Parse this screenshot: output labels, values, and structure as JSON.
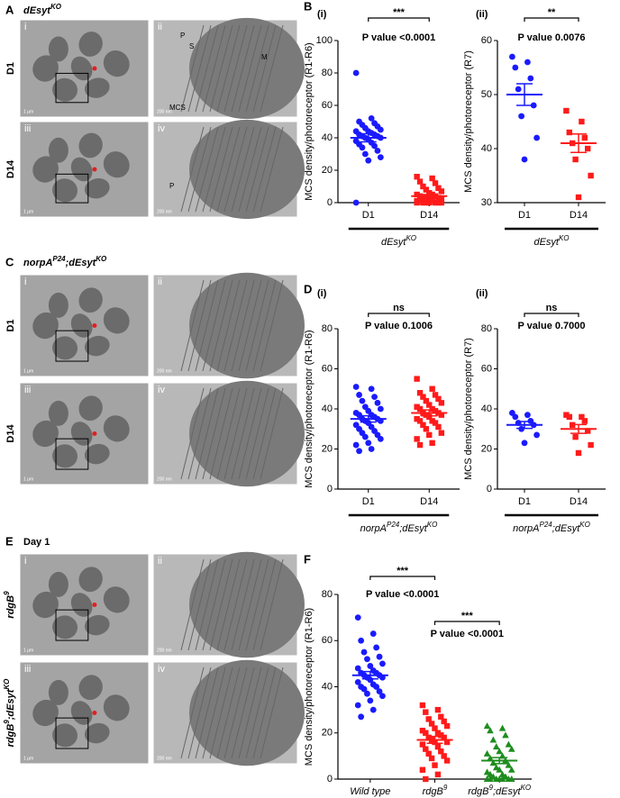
{
  "figure": {
    "panels": [
      {
        "label": "A",
        "title": [
          {
            "text": "dEsyt"
          },
          {
            "text": "KO",
            "sup": true
          }
        ],
        "rows": [
          {
            "label": [
              {
                "text": "D1"
              }
            ],
            "images": [
              {
                "label": "i",
                "scale": "1 μm"
              },
              {
                "label": "ii",
                "scale": "200 nm",
                "notes": [
                  "P",
                  "S",
                  "M",
                  "MCS"
                ]
              }
            ]
          },
          {
            "label": [
              {
                "text": "D14"
              }
            ],
            "images": [
              {
                "label": "iii",
                "scale": "1 μm"
              },
              {
                "label": "iv",
                "scale": "200 nm",
                "notes": [
                  "P"
                ]
              }
            ]
          }
        ]
      },
      {
        "label": "C",
        "title": [
          {
            "text": "norpA"
          },
          {
            "text": "P24",
            "sup": true
          },
          {
            "text": ";dEsyt"
          },
          {
            "text": "KO",
            "sup": true
          }
        ],
        "rows": [
          {
            "label": [
              {
                "text": "D1"
              }
            ],
            "images": [
              {
                "label": "i",
                "scale": "1 μm"
              },
              {
                "label": "ii",
                "scale": "200 nm"
              }
            ]
          },
          {
            "label": [
              {
                "text": "D14"
              }
            ],
            "images": [
              {
                "label": "iii",
                "scale": "1 μm"
              },
              {
                "label": "iv",
                "scale": "200 nm"
              }
            ]
          }
        ]
      },
      {
        "label": "E",
        "title": [
          {
            "text": "Day 1"
          }
        ],
        "rows": [
          {
            "label": [
              {
                "text": "rdgB"
              },
              {
                "text": "9",
                "sup": true
              }
            ],
            "images": [
              {
                "label": "i",
                "scale": "1 μm"
              },
              {
                "label": "ii",
                "scale": "200 nm"
              }
            ]
          },
          {
            "label": [
              {
                "text": "rdgB"
              },
              {
                "text": "9",
                "sup": true
              },
              {
                "text": ";dEsyt"
              },
              {
                "text": "KO",
                "sup": true
              }
            ],
            "images": [
              {
                "label": "iii",
                "scale": "1 μm"
              },
              {
                "label": "iv",
                "scale": "200 nm"
              }
            ]
          }
        ]
      }
    ]
  },
  "chart_data": [
    {
      "type": "scatter",
      "label": "B",
      "title": "(i)",
      "ylabel": "MCS density/photoreceptor (R1-R6)",
      "xlabel": [
        {
          "text": "dEsyt"
        },
        {
          "text": "KO",
          "sup": true
        }
      ],
      "ylim": [
        0,
        100
      ],
      "yticks": [
        0,
        20,
        40,
        60,
        80,
        100
      ],
      "categories": [
        [
          {
            "text": "D1"
          }
        ],
        [
          {
            "text": "D14"
          }
        ]
      ],
      "groups": [
        {
          "color": "#1a1aff",
          "marker": "circle",
          "mean": 40,
          "sem": 2.5,
          "values": [
            80,
            52,
            50,
            49,
            48,
            47,
            46,
            45,
            44,
            44,
            43,
            42,
            42,
            41,
            41,
            40,
            40,
            39,
            38,
            37,
            36,
            35,
            34,
            32,
            30,
            28,
            26,
            0
          ]
        },
        {
          "color": "#ff1a1a",
          "marker": "square",
          "mean": 4,
          "sem": 1,
          "values": [
            16,
            15,
            13,
            12,
            10,
            9,
            8,
            7,
            6,
            5,
            5,
            4,
            4,
            3,
            3,
            2,
            2,
            2,
            1,
            1,
            1,
            0,
            0,
            0,
            0,
            0,
            0,
            0
          ]
        }
      ],
      "comparisons": [
        {
          "stars": "***",
          "p": "P value <0.0001"
        }
      ]
    },
    {
      "type": "scatter",
      "title": "(ii)",
      "ylabel": "MCS density/photoreceptor (R7)",
      "xlabel": [
        {
          "text": "dEsyt"
        },
        {
          "text": "KO",
          "sup": true
        }
      ],
      "ylim": [
        30,
        60
      ],
      "yticks": [
        30,
        40,
        50,
        60
      ],
      "categories": [
        [
          {
            "text": "D1"
          }
        ],
        [
          {
            "text": "D14"
          }
        ]
      ],
      "groups": [
        {
          "color": "#1a1aff",
          "marker": "circle",
          "mean": 50,
          "sem": 2,
          "values": [
            57,
            56,
            55,
            53,
            51,
            48,
            46,
            42,
            38
          ]
        },
        {
          "color": "#ff1a1a",
          "marker": "square",
          "mean": 41,
          "sem": 1.7,
          "values": [
            47,
            45,
            43,
            42,
            41,
            40,
            38,
            35,
            31
          ]
        }
      ],
      "comparisons": [
        {
          "stars": "**",
          "p": "P value 0.0076"
        }
      ]
    },
    {
      "type": "scatter",
      "label": "D",
      "title": "(i)",
      "ylabel": "MCS density/photoreceptor (R1-R6)",
      "xlabel": [
        {
          "text": "norpA"
        },
        {
          "text": "P24",
          "sup": true
        },
        {
          "text": ";dEsyt"
        },
        {
          "text": "KO",
          "sup": true
        }
      ],
      "ylim": [
        0,
        80
      ],
      "yticks": [
        0,
        20,
        40,
        60,
        80
      ],
      "categories": [
        [
          {
            "text": "D1"
          }
        ],
        [
          {
            "text": "D14"
          }
        ]
      ],
      "groups": [
        {
          "color": "#1a1aff",
          "marker": "circle",
          "mean": 35,
          "sem": 1.6,
          "values": [
            51,
            50,
            47,
            46,
            44,
            43,
            41,
            40,
            39,
            38,
            37,
            37,
            36,
            35,
            35,
            34,
            34,
            33,
            32,
            31,
            30,
            29,
            28,
            27,
            26,
            25,
            23,
            22,
            20,
            19
          ]
        },
        {
          "color": "#ff1a1a",
          "marker": "square",
          "mean": 38,
          "sem": 1.5,
          "values": [
            55,
            50,
            48,
            47,
            46,
            45,
            44,
            43,
            42,
            41,
            40,
            40,
            39,
            38,
            38,
            37,
            37,
            36,
            35,
            34,
            34,
            33,
            32,
            31,
            30,
            28,
            27,
            25,
            23,
            22
          ]
        }
      ],
      "comparisons": [
        {
          "stars": "ns",
          "p": "P value 0.1006"
        }
      ]
    },
    {
      "type": "scatter",
      "title": "(ii)",
      "ylabel": "MCS density/photoreceptor (R7)",
      "xlabel": [
        {
          "text": "norpA"
        },
        {
          "text": "P24",
          "sup": true
        },
        {
          "text": ";dEsyt"
        },
        {
          "text": "KO",
          "sup": true
        }
      ],
      "ylim": [
        0,
        80
      ],
      "yticks": [
        0,
        20,
        40,
        60,
        80
      ],
      "categories": [
        [
          {
            "text": "D1"
          }
        ],
        [
          {
            "text": "D14"
          }
        ]
      ],
      "groups": [
        {
          "color": "#1a1aff",
          "marker": "circle",
          "mean": 32,
          "sem": 1.7,
          "values": [
            38,
            37,
            36,
            34,
            33,
            32,
            30,
            27,
            23
          ]
        },
        {
          "color": "#ff1a1a",
          "marker": "square",
          "mean": 30,
          "sem": 2.2,
          "values": [
            37,
            36,
            36,
            34,
            32,
            29,
            26,
            22,
            18
          ]
        }
      ],
      "comparisons": [
        {
          "stars": "ns",
          "p": "P value 0.7000"
        }
      ]
    },
    {
      "type": "scatter",
      "label": "F",
      "ylabel": "MCS density/photoreceptor (R1-R6)",
      "ylim": [
        0,
        80
      ],
      "yticks": [
        0,
        20,
        40,
        60,
        80
      ],
      "categories": [
        [
          {
            "text": "Wild type"
          }
        ],
        [
          {
            "text": "rdgB"
          },
          {
            "text": "9",
            "sup": true
          }
        ],
        [
          {
            "text": "rdgB"
          },
          {
            "text": "9",
            "sup": true
          },
          {
            "text": ";dEsyt"
          },
          {
            "text": "KO",
            "sup": true
          }
        ]
      ],
      "groups": [
        {
          "color": "#1a1aff",
          "marker": "circle",
          "mean": 45,
          "sem": 1.6,
          "values": [
            70,
            63,
            60,
            57,
            55,
            53,
            52,
            50,
            49,
            48,
            47,
            46,
            46,
            45,
            45,
            44,
            44,
            43,
            42,
            41,
            40,
            40,
            39,
            38,
            37,
            36,
            34,
            32,
            30,
            27
          ]
        },
        {
          "color": "#ff1a1a",
          "marker": "square",
          "mean": 17,
          "sem": 1.5,
          "values": [
            32,
            30,
            29,
            27,
            26,
            25,
            24,
            23,
            22,
            21,
            20,
            20,
            19,
            18,
            18,
            17,
            16,
            16,
            15,
            14,
            13,
            12,
            11,
            10,
            9,
            8,
            6,
            4,
            2,
            0
          ]
        },
        {
          "color": "#1e8c1e",
          "marker": "triangle",
          "mean": 8,
          "sem": 1.3,
          "values": [
            23,
            22,
            21,
            19,
            17,
            15,
            14,
            13,
            12,
            11,
            10,
            9,
            8,
            7,
            6,
            5,
            4,
            4,
            3,
            2,
            2,
            1,
            1,
            0,
            0,
            0,
            0,
            0,
            0,
            0
          ]
        }
      ],
      "comparisons": [
        {
          "stars": "***",
          "p": "P value <0.0001"
        },
        {
          "stars": "***",
          "p": "P value <0.0001"
        }
      ]
    }
  ]
}
